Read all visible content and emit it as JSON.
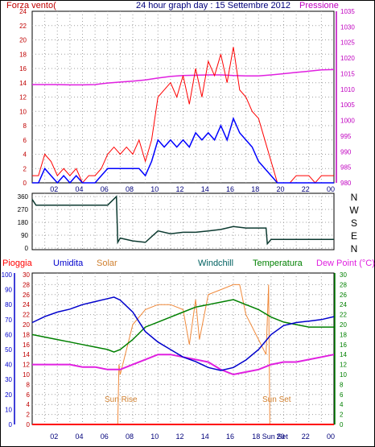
{
  "header": {
    "left_label": "Forza vento",
    "left_unit": "(",
    "center_title": "24 hour graph day : 15 Settembre 2012",
    "right_label": "Pressione"
  },
  "legend": {
    "pioggia": "Pioggia",
    "umidita": "Umidita",
    "solar": "Solar",
    "windchill": "Windchill",
    "temperatura": "Temperatura",
    "dewpoint": "Dew Point (°C)"
  },
  "wind_dir_labels": [
    "N",
    "W",
    "S",
    "E",
    "N"
  ],
  "x_ticks": [
    "02",
    "04",
    "06",
    "08",
    "10",
    "12",
    "14",
    "16",
    "18",
    "20",
    "22",
    "00"
  ],
  "annotations": {
    "sunrise": "Sun Rise",
    "sunset": "Sun Set",
    "sunset_axis": "Sun Set"
  },
  "colors": {
    "wind_gust": "#ff0000",
    "wind_avg": "#0000ff",
    "pressure": "#e020e0",
    "wind_dir": "#0c3a30",
    "humidity": "#0000cc",
    "temperature": "#008000",
    "dewpoint": "#e020e0",
    "solar": "#f08a3c",
    "rain": "#ff0000",
    "axis_left": "#c00000",
    "axis_right": "#c000c0"
  },
  "chart_data": [
    {
      "type": "line",
      "name": "wind",
      "left_axis": {
        "ticks": [
          0,
          2,
          4,
          6,
          8,
          10,
          12,
          14,
          16,
          18,
          20,
          22,
          24
        ],
        "ylim": [
          0,
          24
        ]
      },
      "right_axis": {
        "ticks": [
          980,
          985,
          990,
          995,
          1000,
          1005,
          1010,
          1015,
          1020,
          1025,
          1030,
          1035
        ],
        "ylim": [
          980,
          1035
        ]
      },
      "xlim": [
        0,
        24
      ],
      "gust": {
        "x": [
          0,
          0.5,
          1,
          1.5,
          2,
          2.5,
          3,
          3.5,
          4,
          4.5,
          5,
          5.5,
          6,
          6.5,
          7,
          7.5,
          8,
          8.5,
          9,
          9.5,
          10,
          10.5,
          11,
          11.5,
          12,
          12.5,
          13,
          13.5,
          14,
          14.5,
          15,
          15.5,
          16,
          16.5,
          17,
          17.5,
          18,
          18.5,
          19,
          19.5,
          20,
          20.5,
          21,
          21.5,
          22,
          22.5,
          23,
          23.5,
          24
        ],
        "y": [
          1,
          1,
          4,
          3,
          1,
          2,
          1,
          2,
          0,
          1,
          1,
          2,
          4,
          5,
          4,
          5,
          4,
          6,
          3,
          6,
          12,
          13,
          14,
          12,
          15,
          11,
          16,
          12,
          17,
          15,
          18,
          14,
          19,
          13,
          12,
          10,
          9,
          6,
          3,
          0,
          0,
          0,
          1,
          1,
          1,
          0,
          1,
          1,
          1
        ]
      },
      "average": {
        "x": [
          0,
          0.5,
          1,
          1.5,
          2,
          2.5,
          3,
          3.5,
          4,
          4.5,
          5,
          5.5,
          6,
          6.5,
          7,
          7.5,
          8,
          8.5,
          9,
          9.5,
          10,
          10.5,
          11,
          11.5,
          12,
          12.5,
          13,
          13.5,
          14,
          14.5,
          15,
          15.5,
          16,
          16.5,
          17,
          17.5,
          18,
          18.5,
          19,
          19.5,
          20,
          20.5,
          21,
          21.5,
          22,
          22.5,
          23,
          23.5,
          24
        ],
        "y": [
          0,
          0,
          2,
          1,
          0,
          1,
          0,
          1,
          0,
          0,
          0,
          1,
          2,
          2,
          2,
          2,
          2,
          2,
          1,
          3,
          6,
          5,
          6,
          5,
          6,
          5,
          7,
          6,
          7,
          6,
          8,
          6,
          9,
          7,
          6,
          5,
          3,
          2,
          1,
          0,
          0,
          0,
          0,
          0,
          0,
          0,
          0,
          0,
          0
        ]
      },
      "pressure": {
        "x": [
          0,
          1,
          2,
          3,
          4,
          5,
          6,
          7,
          8,
          9,
          10,
          11,
          12,
          13,
          14,
          15,
          16,
          17,
          18,
          19,
          20,
          21,
          22,
          23,
          24
        ],
        "y": [
          1011.5,
          1011.5,
          1011.5,
          1011.4,
          1011.4,
          1011.5,
          1012.0,
          1012.3,
          1012.6,
          1013.0,
          1013.6,
          1014.1,
          1014.4,
          1014.5,
          1014.6,
          1014.6,
          1014.4,
          1014.3,
          1014.3,
          1014.6,
          1015.0,
          1015.4,
          1015.8,
          1016.2,
          1016.3
        ]
      }
    },
    {
      "type": "line",
      "name": "wind-direction",
      "y_ticks": [
        0,
        90,
        180,
        270,
        360
      ],
      "ylim": [
        0,
        360
      ],
      "xlim": [
        0,
        24
      ],
      "x": [
        0,
        0.3,
        1,
        4,
        6,
        6.7,
        6.8,
        7,
        8,
        9,
        10,
        11,
        12,
        13,
        14,
        15,
        16,
        17,
        18,
        18.6,
        18.7,
        19,
        22,
        24
      ],
      "y": [
        340,
        300,
        300,
        300,
        300,
        360,
        40,
        70,
        50,
        40,
        120,
        100,
        110,
        110,
        120,
        130,
        150,
        140,
        140,
        140,
        30,
        60,
        60,
        60
      ]
    },
    {
      "type": "line",
      "name": "weather",
      "left_axis_humidity": {
        "ticks": [
          0,
          10,
          20,
          30,
          40,
          50,
          60,
          70,
          80,
          90,
          100
        ],
        "ylim": [
          0,
          100
        ]
      },
      "left_axis_rain": {
        "ticks": [
          0,
          2,
          4,
          6,
          8,
          10,
          12,
          14,
          16,
          18,
          20,
          22,
          24,
          26,
          28,
          30
        ],
        "ylim": [
          0,
          30
        ]
      },
      "right_axis_temp": {
        "ticks": [
          0,
          2,
          4,
          6,
          8,
          10,
          12,
          14,
          16,
          18,
          20,
          22,
          24,
          26,
          28,
          30
        ],
        "ylim": [
          0,
          30
        ]
      },
      "xlim": [
        0,
        24
      ],
      "humidity": {
        "x": [
          0,
          1,
          2,
          3,
          4,
          5,
          6,
          6.5,
          7,
          8,
          9,
          10,
          11,
          12,
          13,
          14,
          15,
          16,
          17,
          18,
          19,
          20,
          21,
          22,
          23,
          24
        ],
        "y": [
          68,
          72,
          75,
          77,
          80,
          82,
          84,
          85,
          83,
          75,
          62,
          55,
          50,
          45,
          42,
          38,
          36,
          38,
          43,
          50,
          60,
          66,
          68,
          69,
          70,
          72
        ]
      },
      "temperature": {
        "x": [
          0,
          1,
          2,
          3,
          4,
          5,
          6,
          6.5,
          7,
          8,
          9,
          10,
          11,
          12,
          13,
          14,
          15,
          16,
          17,
          18,
          19,
          20,
          21,
          22,
          23,
          24
        ],
        "y": [
          18,
          17.5,
          17,
          16.5,
          16,
          15.5,
          15,
          14.5,
          15,
          17,
          19.5,
          20.5,
          21.5,
          22.5,
          23.5,
          24,
          24.5,
          25,
          24,
          23,
          21.5,
          20.5,
          20,
          19.5,
          19.5,
          19.5
        ]
      },
      "dewpoint": {
        "x": [
          0,
          1,
          2,
          3,
          4,
          5,
          6,
          7,
          8,
          9,
          10,
          11,
          12,
          13,
          14,
          15,
          16,
          17,
          18,
          19,
          20,
          21,
          22,
          23,
          24
        ],
        "y": [
          12,
          12,
          12,
          12,
          11.5,
          11.5,
          11,
          11,
          12,
          13,
          14,
          14,
          13.5,
          13,
          12.5,
          11,
          10,
          10.5,
          11,
          12,
          12.5,
          12.5,
          13,
          13.5,
          14
        ]
      },
      "solar": {
        "x": [
          6.8,
          6.9,
          7,
          7.5,
          8,
          9,
          10,
          11,
          12,
          12.5,
          13,
          13.3,
          14,
          15,
          16,
          16.5,
          17,
          18,
          18.6,
          18.8,
          18.9
        ],
        "y": [
          0,
          12,
          10,
          15,
          20,
          23,
          24,
          24,
          23,
          16,
          25,
          17,
          26,
          27,
          28,
          28,
          22,
          17,
          14,
          28,
          0
        ]
      },
      "rain": {
        "x": [
          0,
          24
        ],
        "y": [
          0,
          0
        ]
      }
    }
  ]
}
